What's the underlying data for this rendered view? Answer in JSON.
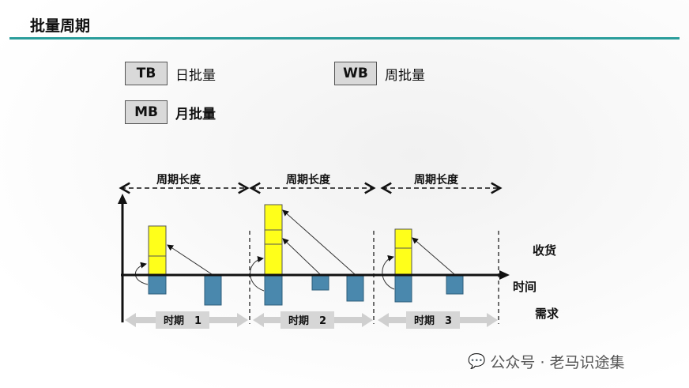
{
  "title": "批量周期",
  "legend": [
    {
      "code": "TB",
      "label": "日批量"
    },
    {
      "code": "WB",
      "label": "周批量"
    },
    {
      "code": "MB",
      "label": "月批量"
    }
  ],
  "diagram": {
    "cycle_label": "周期长度",
    "periods": [
      "时期　1",
      "时期　2",
      "时期　3"
    ],
    "receipt_label": "收货",
    "time_label": "时间",
    "demand_label": "需求"
  },
  "colors": {
    "receipt": "#ffff1a",
    "demand": "#4a88ad",
    "accent": "#2a9d9b"
  },
  "watermark": "公众号 · 老马识途集"
}
